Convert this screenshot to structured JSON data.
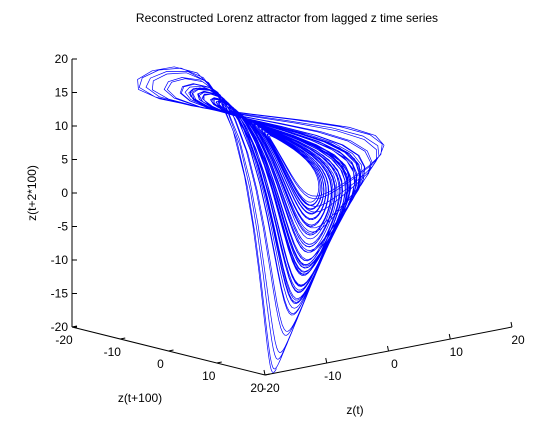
{
  "chart_data": {
    "type": "line",
    "projection": "3d",
    "title": "Reconstructed Lorenz attractor from lagged z time series",
    "xlabel": "z(t)",
    "ylabel": "z(t+100)",
    "zlabel": "z(t+2*100)",
    "xlim": [
      -20,
      20
    ],
    "ylim": [
      -20,
      20
    ],
    "zlim": [
      -20,
      20
    ],
    "x_ticks": [
      "-20",
      "-10",
      "0",
      "10",
      "20"
    ],
    "y_ticks": [
      "-20",
      "-10",
      "0",
      "10",
      "20"
    ],
    "z_ticks": [
      "20",
      "15",
      "10",
      "5",
      "0",
      "-5",
      "-10",
      "-15",
      "-20"
    ],
    "grid": false,
    "box": false,
    "series": [
      {
        "color": "#0000ff"
      }
    ]
  }
}
